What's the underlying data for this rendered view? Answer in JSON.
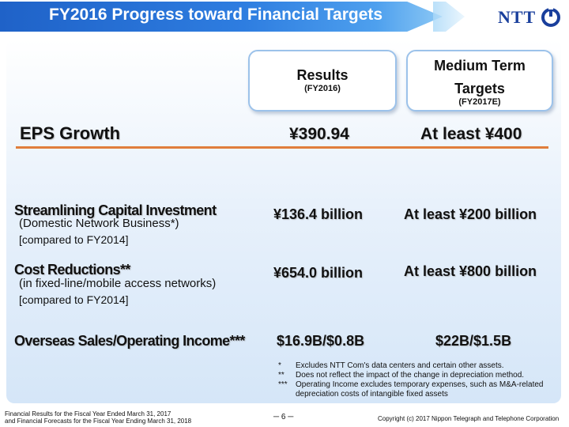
{
  "header": {
    "title": "FY2016 Progress toward Financial Targets",
    "logo_text": "NTT"
  },
  "columns": {
    "results": {
      "title": "Results",
      "sub": "(FY2016)"
    },
    "targets": {
      "title_line1": "Medium Term",
      "title_line2": "Targets",
      "sub": "(FY2017E)"
    }
  },
  "eps": {
    "label": "EPS Growth",
    "result": "¥390.94",
    "target": "At least ¥400"
  },
  "rows": [
    {
      "title": "Streamlining Capital Investment",
      "sub": "(Domestic Network Business*)",
      "note": "[compared to FY2014]",
      "result": "¥136.4 billion",
      "target": "At least ¥200 billion"
    },
    {
      "title": "Cost Reductions**",
      "sub": "(in fixed-line/mobile access networks)",
      "note": "[compared to FY2014]",
      "result": "¥654.0 billion",
      "target": "At least ¥800 billion"
    },
    {
      "title": "Overseas Sales/Operating Income***",
      "result": "$16.9B/$0.8B",
      "target": "$22B/$1.5B"
    }
  ],
  "footnotes": [
    {
      "mark": "*",
      "text": "Excludes NTT Com's data centers and certain other assets."
    },
    {
      "mark": "**",
      "text": "Does not reflect the impact of the change in depreciation method."
    },
    {
      "mark": "***",
      "text": "Operating Income excludes temporary expenses, such as M&A-related depreciation costs of intangible fixed assets"
    }
  ],
  "footer": {
    "left_line1": "Financial Results for the Fiscal Year Ended March 31, 2017",
    "left_line2": "and Financial Forecasts for the Fiscal Year Ending March 31, 2018",
    "page": "─ 6 ─",
    "copyright": "Copyright (c) 2017  Nippon Telegraph and Telephone Corporation"
  },
  "colors": {
    "banner": "#2e7de0",
    "divider": "#e07e3c",
    "logo": "#1a3f9c"
  }
}
